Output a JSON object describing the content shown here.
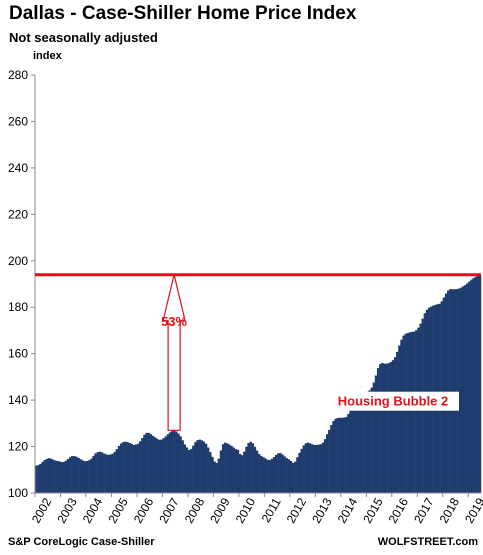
{
  "chart_data": {
    "type": "bar",
    "title": "Dallas - Case-Shiller Home Price Index",
    "subtitle": "Not seasonally adjusted",
    "ylabel": "index",
    "ylim": [
      100,
      280
    ],
    "yticks": [
      100,
      120,
      140,
      160,
      180,
      200,
      220,
      240,
      260,
      280
    ],
    "x_tick_labels": [
      "2002",
      "2003",
      "2004",
      "2005",
      "2006",
      "2007",
      "2008",
      "2009",
      "2010",
      "2011",
      "2012",
      "2013",
      "2014",
      "2015",
      "2016",
      "2017",
      "2018",
      "2019"
    ],
    "x_start": "2002-01",
    "frequency": "monthly",
    "colors": {
      "bars": "#1f3c6e",
      "reference": "#e0111b",
      "annotation": "#e0111b"
    },
    "values": [
      111.8,
      112.0,
      112.5,
      113.4,
      114.2,
      114.7,
      115.0,
      114.8,
      114.4,
      114.0,
      113.8,
      113.6,
      113.3,
      113.4,
      113.9,
      114.6,
      115.4,
      115.9,
      115.9,
      115.6,
      115.1,
      114.5,
      114.0,
      113.7,
      113.8,
      114.1,
      114.8,
      116.0,
      117.1,
      117.6,
      117.8,
      117.5,
      117.0,
      116.7,
      116.4,
      116.6,
      116.9,
      117.7,
      118.9,
      120.3,
      121.3,
      121.9,
      122.1,
      121.9,
      121.6,
      121.2,
      120.7,
      120.9,
      121.2,
      122.3,
      123.7,
      125.1,
      125.9,
      125.9,
      125.3,
      124.6,
      124.0,
      123.4,
      122.9,
      123.0,
      123.6,
      124.4,
      125.3,
      126.1,
      126.6,
      126.9,
      126.5,
      125.6,
      124.4,
      122.7,
      120.9,
      119.6,
      118.5,
      118.9,
      120.4,
      121.9,
      122.8,
      123.0,
      122.7,
      122.1,
      121.2,
      119.6,
      117.6,
      115.6,
      113.6,
      112.9,
      114.8,
      118.3,
      121.0,
      121.7,
      121.4,
      120.9,
      120.3,
      119.6,
      118.9,
      118.6,
      116.8,
      116.3,
      117.8,
      119.9,
      121.5,
      122.1,
      121.4,
      119.9,
      118.3,
      116.8,
      116.0,
      115.4,
      114.9,
      114.3,
      114.2,
      114.7,
      115.5,
      116.4,
      117.1,
      117.2,
      116.6,
      115.8,
      115.0,
      114.5,
      113.8,
      113.0,
      113.5,
      115.4,
      117.3,
      119.0,
      120.5,
      121.4,
      121.7,
      121.4,
      121.0,
      120.7,
      120.7,
      120.8,
      121.0,
      121.7,
      123.2,
      125.3,
      127.2,
      129.3,
      131.0,
      132.0,
      132.3,
      132.4,
      132.4,
      132.5,
      132.7,
      134.0,
      136.4,
      138.9,
      141.2,
      142.3,
      142.9,
      143.1,
      143.1,
      143.3,
      143.6,
      144.2,
      145.4,
      147.6,
      150.6,
      153.8,
      155.5,
      156.0,
      155.7,
      155.7,
      155.9,
      156.4,
      157.2,
      158.5,
      160.8,
      163.5,
      166.0,
      167.8,
      168.6,
      168.9,
      169.2,
      169.4,
      169.5,
      170.1,
      171.2,
      172.9,
      175.1,
      177.4,
      178.9,
      179.8,
      180.3,
      180.7,
      181.0,
      181.3,
      181.5,
      182.6,
      184.2,
      185.9,
      187.2,
      187.8,
      187.8,
      187.7,
      187.8,
      188.0,
      188.4,
      189.0,
      189.5,
      190.3,
      191.1,
      191.9,
      192.6,
      193.1,
      193.6,
      193.8
    ],
    "reference_line": 194,
    "annotations": {
      "percent": "53%",
      "label": "Housing Bubble 2",
      "arrow_from": {
        "x": "2007-06",
        "y": 127
      },
      "arrow_to": {
        "x": "2007-06",
        "y": 194
      }
    },
    "legend": "none",
    "grid": false
  },
  "footer": {
    "source": "S&P CoreLogic Case-Shiller",
    "brand": "WOLFSTREET.com"
  }
}
